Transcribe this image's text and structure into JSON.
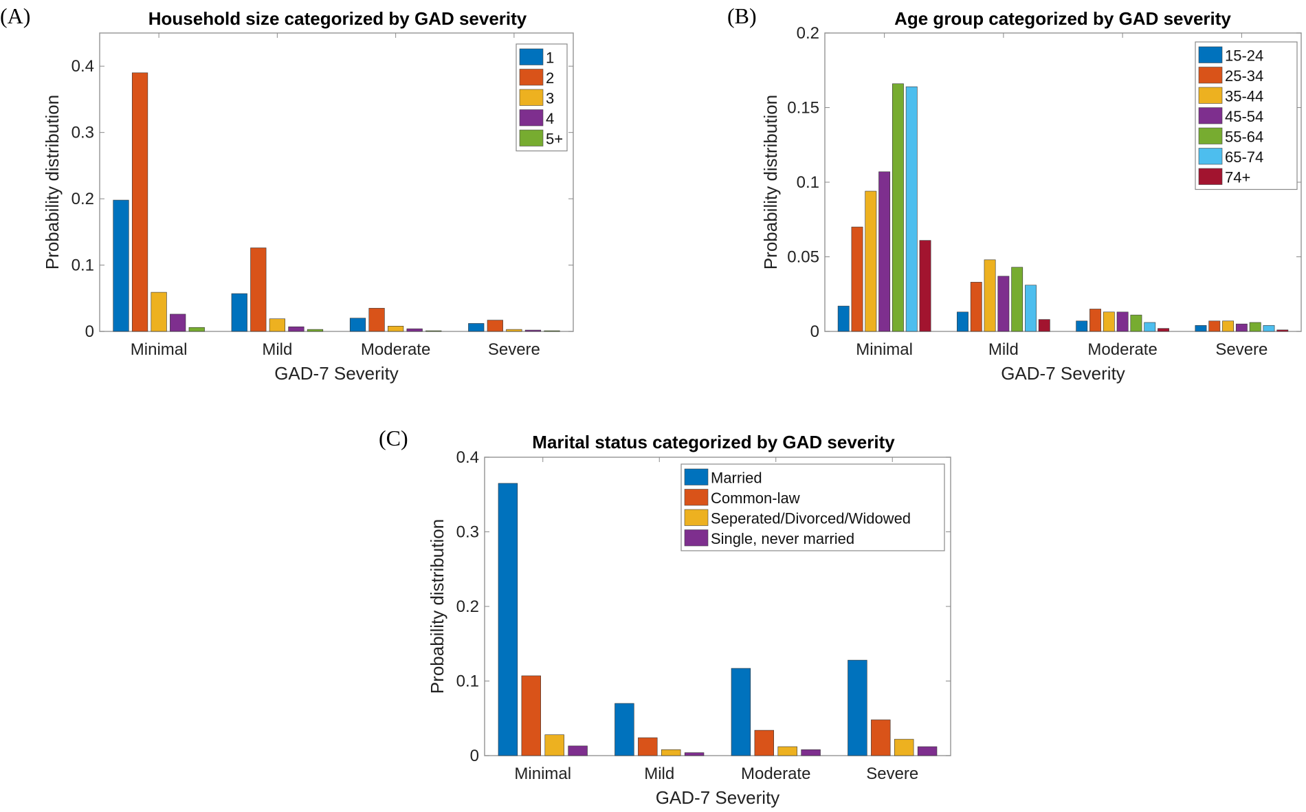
{
  "chart_data": [
    {
      "panel_label": "(A)",
      "type": "bar",
      "title": "Household size categorized by GAD severity",
      "xlabel": "GAD-7 Severity",
      "ylabel": "Probability distribution",
      "categories": [
        "Minimal",
        "Mild",
        "Moderate",
        "Severe"
      ],
      "ylim": [
        0,
        0.45
      ],
      "yticks": [
        0,
        0.1,
        0.2,
        0.3,
        0.4
      ],
      "ytick_labels": [
        "0",
        "0.1",
        "0.2",
        "0.3",
        "0.4"
      ],
      "legend_position": "top-right",
      "series": [
        {
          "name": "1",
          "color": "#0072BD",
          "values": [
            0.198,
            0.057,
            0.02,
            0.012
          ]
        },
        {
          "name": "2",
          "color": "#D95319",
          "values": [
            0.39,
            0.126,
            0.035,
            0.017
          ]
        },
        {
          "name": "3",
          "color": "#EDB120",
          "values": [
            0.059,
            0.019,
            0.008,
            0.003
          ]
        },
        {
          "name": "4",
          "color": "#7E2F8E",
          "values": [
            0.026,
            0.007,
            0.004,
            0.002
          ]
        },
        {
          "name": "5+",
          "color": "#77AC30",
          "values": [
            0.006,
            0.003,
            0.001,
            0.001
          ]
        }
      ]
    },
    {
      "panel_label": "(B)",
      "type": "bar",
      "title": "Age group categorized by GAD severity",
      "xlabel": "GAD-7 Severity",
      "ylabel": "Probability distribution",
      "categories": [
        "Minimal",
        "Mild",
        "Moderate",
        "Severe"
      ],
      "ylim": [
        0,
        0.2
      ],
      "yticks": [
        0,
        0.05,
        0.1,
        0.15,
        0.2
      ],
      "ytick_labels": [
        "0",
        "0.05",
        "0.1",
        "0.15",
        "0.2"
      ],
      "legend_position": "top-right",
      "series": [
        {
          "name": "15-24",
          "color": "#0072BD",
          "values": [
            0.017,
            0.013,
            0.007,
            0.004
          ]
        },
        {
          "name": "25-34",
          "color": "#D95319",
          "values": [
            0.07,
            0.033,
            0.015,
            0.007
          ]
        },
        {
          "name": "35-44",
          "color": "#EDB120",
          "values": [
            0.094,
            0.048,
            0.013,
            0.007
          ]
        },
        {
          "name": "45-54",
          "color": "#7E2F8E",
          "values": [
            0.107,
            0.037,
            0.013,
            0.005
          ]
        },
        {
          "name": "55-64",
          "color": "#77AC30",
          "values": [
            0.166,
            0.043,
            0.011,
            0.006
          ]
        },
        {
          "name": "65-74",
          "color": "#4DBEEE",
          "values": [
            0.164,
            0.031,
            0.006,
            0.004
          ]
        },
        {
          "name": "74+",
          "color": "#A2142F",
          "values": [
            0.061,
            0.008,
            0.002,
            0.001
          ]
        }
      ]
    },
    {
      "panel_label": "(C)",
      "type": "bar",
      "title": "Marital status categorized by GAD severity",
      "xlabel": "GAD-7 Severity",
      "ylabel": "Probability distribution",
      "categories": [
        "Minimal",
        "Mild",
        "Moderate",
        "Severe"
      ],
      "ylim": [
        0,
        0.4
      ],
      "yticks": [
        0,
        0.1,
        0.2,
        0.3,
        0.4
      ],
      "ytick_labels": [
        "0",
        "0.1",
        "0.2",
        "0.3",
        "0.4"
      ],
      "legend_position": "top-right",
      "series": [
        {
          "name": "Married",
          "color": "#0072BD",
          "values": [
            0.365,
            0.07,
            0.117,
            0.128
          ]
        },
        {
          "name": "Common-law",
          "color": "#D95319",
          "values": [
            0.107,
            0.024,
            0.034,
            0.048
          ]
        },
        {
          "name": "Seperated/Divorced/Widowed",
          "color": "#EDB120",
          "values": [
            0.028,
            0.008,
            0.012,
            0.022
          ]
        },
        {
          "name": "Single, never married",
          "color": "#7E2F8E",
          "values": [
            0.013,
            0.004,
            0.008,
            0.012
          ]
        }
      ]
    }
  ]
}
